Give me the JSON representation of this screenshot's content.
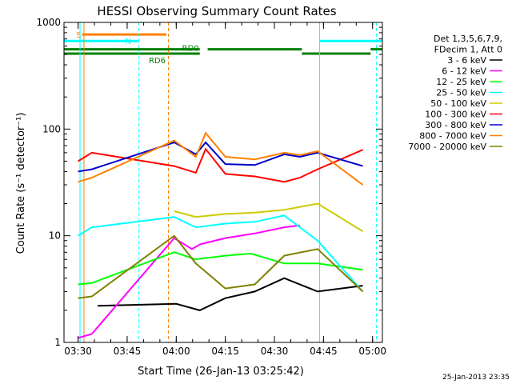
{
  "chart_data": {
    "type": "line",
    "title": "HESSI Observing Summary Count Rates",
    "xlabel": "Start Time (26-Jan-13 03:25:42)",
    "ylabel": "Count Rate (s⁻¹ detector⁻¹)",
    "yscale": "log",
    "ylim": [
      1,
      1000
    ],
    "xlim": [
      "03:25:42",
      "05:03:00"
    ],
    "x_ticks": [
      "03:30",
      "03:45",
      "04:00",
      "04:15",
      "04:30",
      "04:45",
      "05:00"
    ],
    "y_ticks": [
      "1",
      "10",
      "100",
      "1000"
    ],
    "timestamp": "25-Jan-2013 23:35",
    "legend": {
      "position": "right",
      "header": [
        "Det 1,3,5,6,7,9,",
        "FDecim 1, Att 0"
      ]
    },
    "flags": [
      {
        "label": "S",
        "color": "#ff8000"
      },
      {
        "label": "N",
        "color": "#00ffff"
      },
      {
        "label": "RD0",
        "color": "#008000"
      },
      {
        "label": "RD6",
        "color": "#008000"
      }
    ],
    "series": [
      {
        "name": "3 - 6 keV",
        "color": "#000000",
        "values": [
          [
            3.6,
            2.2
          ],
          [
            4.0,
            2.3
          ],
          [
            4.12,
            2.0
          ],
          [
            4.25,
            2.6
          ],
          [
            4.4,
            3.0
          ],
          [
            4.55,
            4.0
          ],
          [
            4.72,
            3.0
          ],
          [
            4.95,
            3.4
          ]
        ]
      },
      {
        "name": "6 - 12 keV",
        "color": "#ff00ff",
        "values": [
          [
            3.5,
            1.1
          ],
          [
            3.57,
            1.2
          ],
          [
            3.99,
            9.5
          ],
          [
            4.08,
            7.5
          ],
          [
            4.12,
            8.3
          ],
          [
            4.25,
            9.5
          ],
          [
            4.4,
            10.5
          ],
          [
            4.55,
            12.0
          ],
          [
            4.63,
            12.5
          ]
        ]
      },
      {
        "name": "12 - 25 keV",
        "color": "#00ff00",
        "values": [
          [
            3.5,
            3.5
          ],
          [
            3.57,
            3.6
          ],
          [
            3.99,
            7.0
          ],
          [
            4.1,
            6.0
          ],
          [
            4.25,
            6.5
          ],
          [
            4.38,
            6.8
          ],
          [
            4.55,
            5.5
          ],
          [
            4.72,
            5.5
          ],
          [
            4.95,
            4.8
          ]
        ]
      },
      {
        "name": "25 - 50 keV",
        "color": "#00ffff",
        "values": [
          [
            3.5,
            10.0
          ],
          [
            3.57,
            12.0
          ],
          [
            3.99,
            15.0
          ],
          [
            4.1,
            12.0
          ],
          [
            4.25,
            13.0
          ],
          [
            4.4,
            13.5
          ],
          [
            4.55,
            15.5
          ],
          [
            4.72,
            9.0
          ],
          [
            4.95,
            3.0
          ]
        ]
      },
      {
        "name": "50 - 100 keV",
        "color": "#cccc00",
        "values": [
          [
            3.99,
            17.0
          ],
          [
            4.1,
            15.0
          ],
          [
            4.25,
            16.0
          ],
          [
            4.4,
            16.5
          ],
          [
            4.55,
            17.5
          ],
          [
            4.72,
            20.0
          ],
          [
            4.95,
            11.0
          ]
        ]
      },
      {
        "name": "100 - 300 keV",
        "color": "#ff0000",
        "values": [
          [
            3.5,
            50.0
          ],
          [
            3.57,
            60.0
          ],
          [
            3.99,
            45.0
          ],
          [
            4.1,
            39.0
          ],
          [
            4.15,
            65.0
          ],
          [
            4.25,
            38.0
          ],
          [
            4.4,
            36.0
          ],
          [
            4.55,
            32.0
          ],
          [
            4.63,
            35.0
          ],
          [
            4.72,
            42.0
          ],
          [
            4.95,
            64.0
          ]
        ]
      },
      {
        "name": "300 - 800 keV",
        "color": "#0000cc",
        "values": [
          [
            3.5,
            40.0
          ],
          [
            3.57,
            42.0
          ],
          [
            3.99,
            75.0
          ],
          [
            4.1,
            58.0
          ],
          [
            4.15,
            75.0
          ],
          [
            4.25,
            47.0
          ],
          [
            4.4,
            46.0
          ],
          [
            4.55,
            58.0
          ],
          [
            4.63,
            55.0
          ],
          [
            4.72,
            60.0
          ],
          [
            4.95,
            45.0
          ]
        ]
      },
      {
        "name": "800 - 7000 keV",
        "color": "#ff8000",
        "values": [
          [
            3.5,
            32.0
          ],
          [
            3.57,
            35.0
          ],
          [
            3.99,
            78.0
          ],
          [
            4.1,
            55.0
          ],
          [
            4.15,
            92.0
          ],
          [
            4.25,
            55.0
          ],
          [
            4.4,
            52.0
          ],
          [
            4.55,
            60.0
          ],
          [
            4.63,
            57.0
          ],
          [
            4.72,
            62.0
          ],
          [
            4.95,
            30.0
          ]
        ]
      },
      {
        "name": "7000 - 20000 keV",
        "color": "#808000",
        "values": [
          [
            3.5,
            2.6
          ],
          [
            3.57,
            2.7
          ],
          [
            3.99,
            10.0
          ],
          [
            4.1,
            5.5
          ],
          [
            4.25,
            3.2
          ],
          [
            4.4,
            3.5
          ],
          [
            4.55,
            6.5
          ],
          [
            4.72,
            7.5
          ],
          [
            4.95,
            3.0
          ]
        ]
      }
    ]
  }
}
